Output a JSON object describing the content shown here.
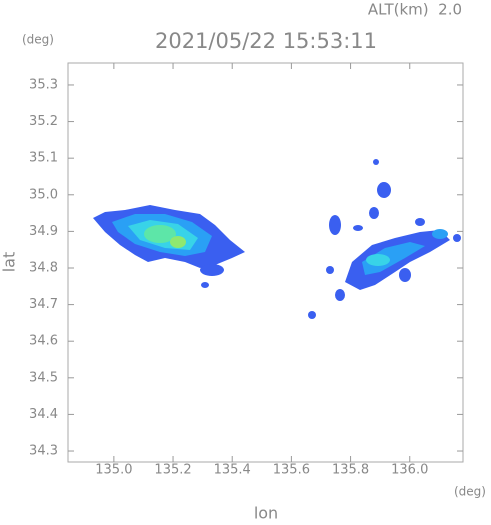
{
  "header": {
    "altitude": "ALT(km)  2.0",
    "timestamp": "2021/05/22 15:53:11"
  },
  "map": {
    "y_unit": "(deg)",
    "x_unit": "(deg)",
    "x_label": "lon",
    "y_label": "lat",
    "xlim": [
      134.845,
      136.18
    ],
    "ylim": [
      34.27,
      35.36
    ],
    "xticks": [
      {
        "value": 135,
        "label": "135.0"
      },
      135.2,
      135.4,
      135.6,
      135.8,
      {
        "value": 136,
        "label": "136.0"
      }
    ],
    "yticks": [
      34.3,
      34.4,
      34.5,
      34.6,
      34.7,
      34.8,
      34.9,
      {
        "value": 35,
        "label": "35.0"
      },
      35.1,
      35.2,
      35.3
    ]
  }
}
